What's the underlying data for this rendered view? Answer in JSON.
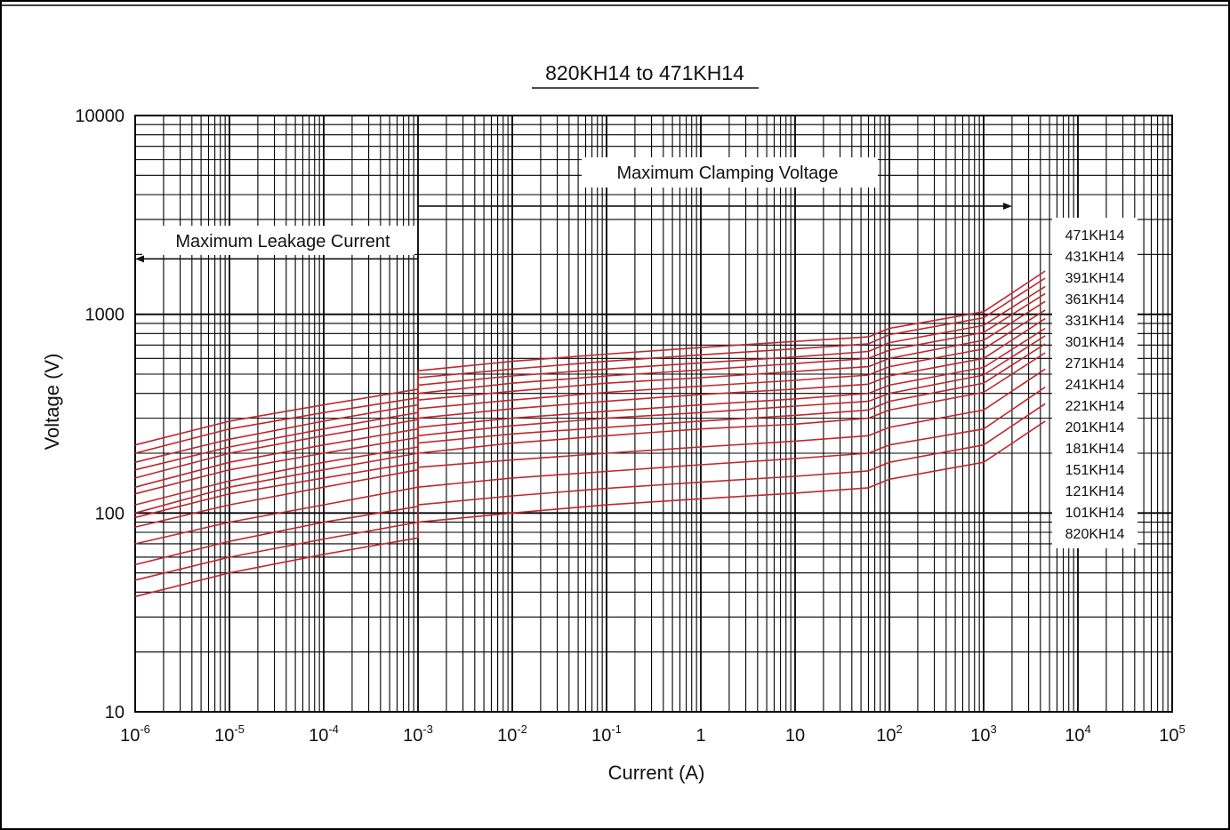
{
  "chart_data": {
    "type": "line",
    "title": "820KH14 to 471KH14",
    "xlabel": "Current (A)",
    "ylabel": "Voltage (V)",
    "x_scale": "log",
    "y_scale": "log",
    "xlim": [
      1e-06,
      100000.0
    ],
    "ylim": [
      10,
      10000
    ],
    "grid": true,
    "x_ticks": [
      {
        "value": 1e-06,
        "base": "10",
        "exp": "-6"
      },
      {
        "value": 1e-05,
        "base": "10",
        "exp": "-5"
      },
      {
        "value": 0.0001,
        "base": "10",
        "exp": "-4"
      },
      {
        "value": 0.001,
        "base": "10",
        "exp": "-3"
      },
      {
        "value": 0.01,
        "base": "10",
        "exp": "-2"
      },
      {
        "value": 0.1,
        "base": "10",
        "exp": "-1"
      },
      {
        "value": 1,
        "base": "1",
        "exp": ""
      },
      {
        "value": 10,
        "base": "10",
        "exp": ""
      },
      {
        "value": 100,
        "base": "10",
        "exp": "2"
      },
      {
        "value": 1000,
        "base": "10",
        "exp": "3"
      },
      {
        "value": 10000,
        "base": "10",
        "exp": "4"
      },
      {
        "value": 100000,
        "base": "10",
        "exp": "5"
      }
    ],
    "y_ticks": [
      {
        "value": 10,
        "label": "10"
      },
      {
        "value": 100,
        "label": "100"
      },
      {
        "value": 1000,
        "label": "1000"
      },
      {
        "value": 10000,
        "label": "10000"
      }
    ],
    "annotations": [
      {
        "text": "Maximum Clamping Voltage",
        "arrow": "right",
        "x_from": 0.001,
        "x_to": 2000,
        "y": 3500
      },
      {
        "text": "Maximum Leakage Current",
        "arrow": "left",
        "x_from": 0.001,
        "x_to": 1e-06,
        "y": 1900
      }
    ],
    "line_color": "#c1272d",
    "legend_position": "right",
    "x": [
      1e-06,
      1e-05,
      0.0001,
      0.001,
      0.001,
      0.01,
      0.1,
      1,
      10,
      60,
      100,
      1000,
      4500
    ],
    "series": [
      {
        "name": "471KH14",
        "values": [
          220,
          290,
          350,
          420,
          520,
          580,
          630,
          680,
          730,
          770,
          850,
          1030,
          1650
        ]
      },
      {
        "name": "431KH14",
        "values": [
          200,
          265,
          320,
          380,
          480,
          530,
          580,
          625,
          670,
          710,
          790,
          960,
          1520
        ]
      },
      {
        "name": "391KH14",
        "values": [
          180,
          235,
          290,
          350,
          440,
          490,
          530,
          570,
          610,
          650,
          720,
          880,
          1380
        ]
      },
      {
        "name": "361KH14",
        "values": [
          165,
          215,
          265,
          320,
          400,
          450,
          490,
          525,
          565,
          600,
          660,
          810,
          1270
        ]
      },
      {
        "name": "331KH14",
        "values": [
          150,
          200,
          245,
          295,
          370,
          410,
          450,
          480,
          515,
          545,
          600,
          740,
          1160
        ]
      },
      {
        "name": "301KH14",
        "values": [
          135,
          180,
          220,
          265,
          335,
          370,
          405,
          435,
          465,
          495,
          545,
          670,
          1050
        ]
      },
      {
        "name": "271KH14",
        "values": [
          125,
          165,
          200,
          240,
          300,
          335,
          365,
          395,
          420,
          445,
          490,
          600,
          950
        ]
      },
      {
        "name": "241KH14",
        "values": [
          110,
          145,
          180,
          215,
          270,
          300,
          325,
          350,
          375,
          400,
          440,
          540,
          850
        ]
      },
      {
        "name": "221KH14",
        "values": [
          100,
          135,
          165,
          200,
          245,
          275,
          300,
          320,
          345,
          365,
          400,
          495,
          780
        ]
      },
      {
        "name": "201KH14",
        "values": [
          95,
          125,
          150,
          180,
          225,
          250,
          270,
          290,
          310,
          330,
          365,
          450,
          710
        ]
      },
      {
        "name": "181KH14",
        "values": [
          85,
          110,
          135,
          165,
          200,
          225,
          245,
          265,
          280,
          300,
          330,
          405,
          640
        ]
      },
      {
        "name": "151KH14",
        "values": [
          70,
          90,
          110,
          135,
          170,
          185,
          200,
          215,
          230,
          245,
          270,
          330,
          530
        ]
      },
      {
        "name": "121KH14",
        "values": [
          55,
          72,
          90,
          108,
          135,
          150,
          162,
          175,
          188,
          200,
          220,
          265,
          430
        ]
      },
      {
        "name": "101KH14",
        "values": [
          46,
          60,
          74,
          90,
          110,
          122,
          133,
          143,
          153,
          163,
          180,
          220,
          355
        ]
      },
      {
        "name": "820KH14",
        "values": [
          38,
          50,
          62,
          75,
          90,
          100,
          110,
          118,
          126,
          134,
          148,
          180,
          290
        ]
      }
    ]
  }
}
